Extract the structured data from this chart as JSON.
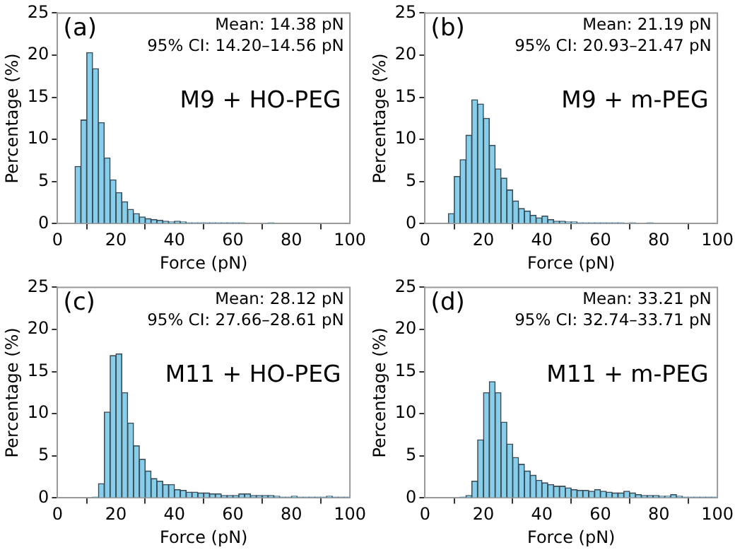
{
  "chart_data": [
    {
      "type": "histogram",
      "xlabel": "Force (pN)",
      "ylabel": "Percentage (%)",
      "color": "#87ceeb",
      "xlim": [
        0,
        100
      ],
      "ylim": [
        0,
        25
      ],
      "xticks": [
        0,
        20,
        40,
        60,
        80,
        100
      ],
      "yticks": [
        0,
        5,
        10,
        15,
        20,
        25
      ],
      "grid": false,
      "annotations": [
        "(a)",
        "Mean: 14.38 pN",
        "95% CI: 14.20–14.56 pN",
        "M9 + HO-PEG"
      ],
      "bins": [
        0,
        2,
        4,
        6,
        8,
        10,
        12,
        14,
        16,
        18,
        20,
        22,
        24,
        26,
        28,
        30,
        32,
        34,
        36,
        38,
        40,
        42,
        44,
        46,
        48,
        50,
        52,
        54,
        56,
        58,
        60,
        62,
        64,
        66,
        68,
        70,
        72,
        74,
        76,
        78,
        80,
        82,
        84,
        86,
        88,
        90,
        92,
        94,
        96,
        98,
        100
      ],
      "values": [
        0,
        0,
        0,
        6.8,
        12.3,
        20.3,
        18.4,
        12.0,
        7.8,
        5.2,
        3.7,
        2.6,
        1.7,
        1.2,
        0.8,
        0.6,
        0.5,
        0.4,
        0.3,
        0.2,
        0.3,
        0.2,
        0.1,
        0.1,
        0.1,
        0.1,
        0.1,
        0.1,
        0.1,
        0.1,
        0.1,
        0.1,
        0,
        0,
        0,
        0,
        0.1,
        0,
        0,
        0,
        0,
        0,
        0,
        0,
        0,
        0,
        0,
        0,
        0,
        0
      ]
    },
    {
      "type": "histogram",
      "xlabel": "Force (pN)",
      "ylabel": "Percentage (%)",
      "color": "#87ceeb",
      "xlim": [
        0,
        100
      ],
      "ylim": [
        0,
        25
      ],
      "xticks": [
        0,
        20,
        40,
        60,
        80,
        100
      ],
      "yticks": [
        0,
        5,
        10,
        15,
        20,
        25
      ],
      "grid": false,
      "annotations": [
        "(b)",
        "Mean: 21.19 pN",
        "95% CI: 20.93–21.47 pN",
        "M9 + m-PEG"
      ],
      "bins": [
        0,
        2,
        4,
        6,
        8,
        10,
        12,
        14,
        16,
        18,
        20,
        22,
        24,
        26,
        28,
        30,
        32,
        34,
        36,
        38,
        40,
        42,
        44,
        46,
        48,
        50,
        52,
        54,
        56,
        58,
        60,
        62,
        64,
        66,
        68,
        70,
        72,
        74,
        76,
        78,
        80,
        82,
        84,
        86,
        88,
        90,
        92,
        94,
        96,
        98,
        100
      ],
      "values": [
        0,
        0,
        0,
        0,
        1.2,
        5.6,
        7.6,
        10.5,
        14.7,
        14.2,
        12.5,
        9.3,
        6.5,
        5.4,
        4.0,
        2.7,
        1.8,
        1.5,
        1.0,
        0.7,
        0.9,
        0.5,
        0.3,
        0.3,
        0.2,
        0.2,
        0.1,
        0.1,
        0.1,
        0.1,
        0.1,
        0.1,
        0.1,
        0.1,
        0,
        0.1,
        0,
        0,
        0.1,
        0,
        0,
        0,
        0,
        0,
        0,
        0,
        0,
        0,
        0,
        0
      ]
    },
    {
      "type": "histogram",
      "xlabel": "Force (pN)",
      "ylabel": "Percentage (%)",
      "color": "#87ceeb",
      "xlim": [
        0,
        100
      ],
      "ylim": [
        0,
        25
      ],
      "xticks": [
        0,
        20,
        40,
        60,
        80,
        100
      ],
      "yticks": [
        0,
        5,
        10,
        15,
        20,
        25
      ],
      "grid": false,
      "annotations": [
        "(c)",
        "Mean: 28.12 pN",
        "95% CI: 27.66–28.61 pN",
        "M11 + HO-PEG"
      ],
      "bins": [
        0,
        2,
        4,
        6,
        8,
        10,
        12,
        14,
        16,
        18,
        20,
        22,
        24,
        26,
        28,
        30,
        32,
        34,
        36,
        38,
        40,
        42,
        44,
        46,
        48,
        50,
        52,
        54,
        56,
        58,
        60,
        62,
        64,
        66,
        68,
        70,
        72,
        74,
        76,
        78,
        80,
        82,
        84,
        86,
        88,
        90,
        92,
        94,
        96,
        98,
        100
      ],
      "values": [
        0,
        0,
        0,
        0,
        0,
        0,
        0.1,
        1.7,
        10.2,
        16.9,
        17.1,
        12.5,
        8.9,
        6.2,
        4.6,
        3.2,
        2.3,
        2.0,
        1.6,
        1.6,
        1.0,
        0.9,
        0.7,
        0.7,
        0.6,
        0.6,
        0.5,
        0.5,
        0.3,
        0.3,
        0.3,
        0.5,
        0.5,
        0.3,
        0.3,
        0.3,
        0.3,
        0.2,
        0.1,
        0.1,
        0.2,
        0.1,
        0.1,
        0.1,
        0.1,
        0.1,
        0.2,
        0.1,
        0.1,
        0.1
      ]
    },
    {
      "type": "histogram",
      "xlabel": "Force (pN)",
      "ylabel": "Percentage (%)",
      "color": "#87ceeb",
      "xlim": [
        0,
        100
      ],
      "ylim": [
        0,
        25
      ],
      "xticks": [
        0,
        20,
        40,
        60,
        80,
        100
      ],
      "yticks": [
        0,
        5,
        10,
        15,
        20,
        25
      ],
      "grid": false,
      "annotations": [
        "(d)",
        "Mean: 33.21 pN",
        "95% CI: 32.74–33.71 pN",
        "M11 + m-PEG"
      ],
      "bins": [
        0,
        2,
        4,
        6,
        8,
        10,
        12,
        14,
        16,
        18,
        20,
        22,
        24,
        26,
        28,
        30,
        32,
        34,
        36,
        38,
        40,
        42,
        44,
        46,
        48,
        50,
        52,
        54,
        56,
        58,
        60,
        62,
        64,
        66,
        68,
        70,
        72,
        74,
        76,
        78,
        80,
        82,
        84,
        86,
        88,
        90,
        92,
        94,
        96,
        98,
        100
      ],
      "values": [
        0,
        0,
        0,
        0,
        0,
        0,
        0.1,
        0.3,
        2.0,
        6.9,
        12.5,
        13.8,
        12.5,
        9.0,
        6.4,
        4.8,
        4.0,
        3.2,
        2.7,
        2.1,
        1.8,
        1.6,
        1.4,
        1.4,
        1.2,
        1.0,
        0.9,
        0.9,
        0.8,
        1.0,
        0.8,
        0.7,
        0.6,
        0.6,
        0.8,
        0.6,
        0.4,
        0.3,
        0.3,
        0.3,
        0.2,
        0.2,
        0.4,
        0.2,
        0.1,
        0.1,
        0.1,
        0.1,
        0.1,
        0.1
      ]
    }
  ]
}
